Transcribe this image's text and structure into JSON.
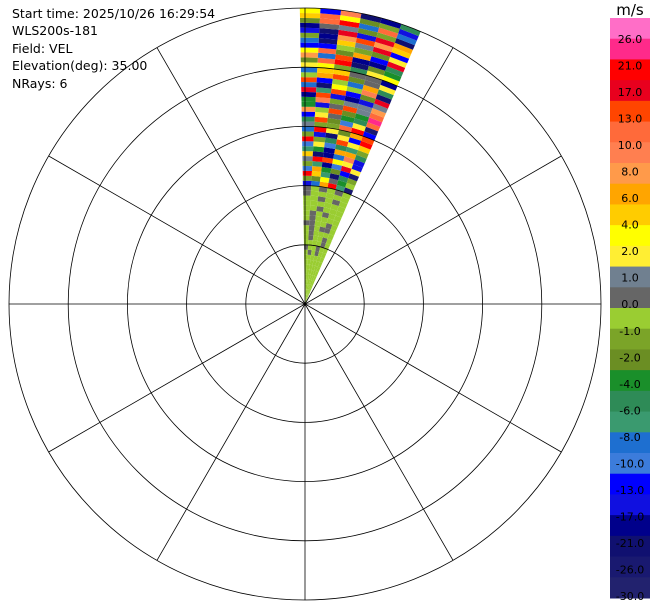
{
  "info": {
    "start_time": "Start time: 2025/10/26 16:29:54",
    "instrument": "WLS200s-181",
    "field": "Field: VEL",
    "elevation": "Elevation(deg): 35.00",
    "nrays": "NRays: 6"
  },
  "chart_data": {
    "type": "heatmap",
    "projection": "polar-ppi",
    "field": "VEL",
    "unit": "m/s",
    "grid": true,
    "range_rings": 5,
    "radial_lines_deg": [
      0,
      30,
      60,
      90,
      120,
      150,
      180,
      210,
      240,
      270,
      300,
      330
    ],
    "ray_azimuths_deg": [
      1,
      5,
      9,
      13,
      17,
      21
    ],
    "ray_bin_bands": [
      {
        "from_frac": 0.0,
        "to_frac": 0.15,
        "velocity_ms": [
          -2.0,
          0.0
        ]
      },
      {
        "from_frac": 0.15,
        "to_frac": 0.4,
        "velocity_ms": [
          -2.0,
          0.0,
          2.0
        ]
      },
      {
        "from_frac": 0.4,
        "to_frac": 1.0,
        "velocity_ms": [
          -26.0,
          26.0
        ]
      }
    ],
    "colorbar": {
      "label": "m/s",
      "tick_labels": [
        "26.0",
        "21.0",
        "17.0",
        "13.0",
        "10.0",
        "8.0",
        "6.0",
        "4.0",
        "2.0",
        "1.0",
        "0.0",
        "-1.0",
        "-2.0",
        "-4.0",
        "-6.0",
        "-8.0",
        "-10.0",
        "-13.0",
        "-17.0",
        "-21.0",
        "-26.0",
        "-30.0"
      ],
      "colors": [
        "#ff6ec7",
        "#ff2a8a",
        "#ff0000",
        "#e8001e",
        "#ff4500",
        "#ff6a3a",
        "#ff7f50",
        "#ff9a4a",
        "#ffa500",
        "#ffcc00",
        "#ffff00",
        "#ffee33",
        "#708090",
        "#666666",
        "#9acd32",
        "#7ba428",
        "#6b8e23",
        "#1a8f2a",
        "#2e8b57",
        "#3a9a6f",
        "#1e6fd0",
        "#3c7cdb",
        "#0000ff",
        "#1010e0",
        "#00008b",
        "#101070",
        "#191970",
        "#22226e"
      ]
    }
  }
}
